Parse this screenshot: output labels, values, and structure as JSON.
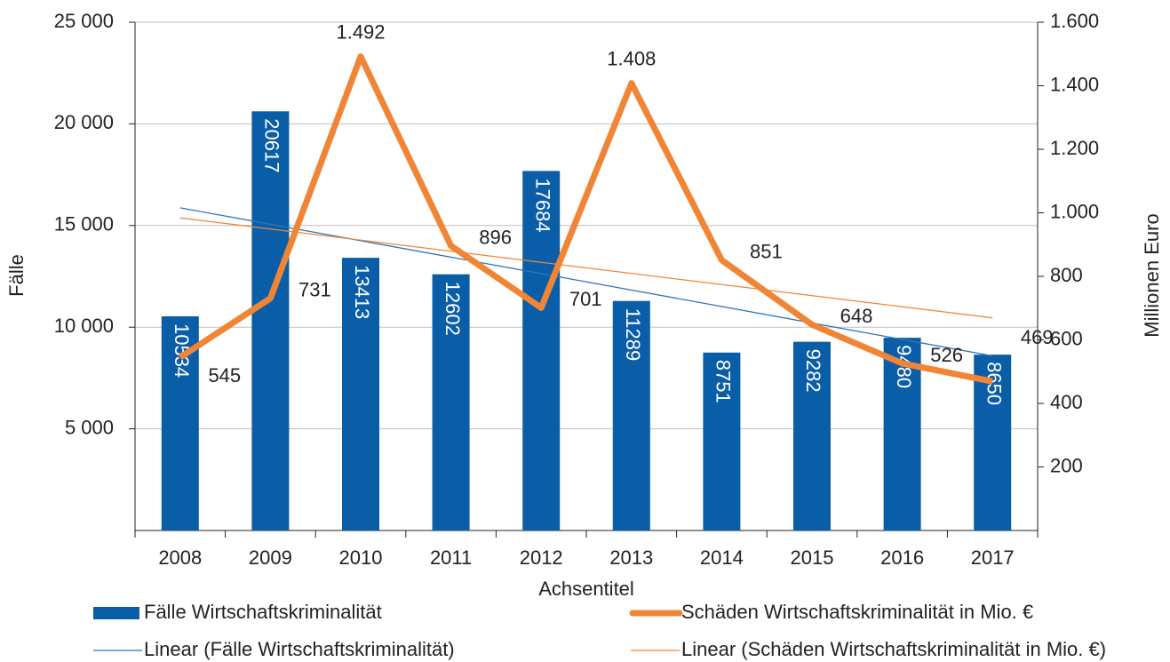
{
  "chart_data": {
    "type": "bar-line",
    "categories": [
      "2008",
      "2009",
      "2010",
      "2011",
      "2012",
      "2013",
      "2014",
      "2015",
      "2016",
      "2017"
    ],
    "x_label": "Achsentitel",
    "y_label": "Fälle",
    "y2_label": "Millionen Euro",
    "ylim": [
      0,
      25000
    ],
    "yticks": [
      {
        "value": 5000,
        "label": "5 000"
      },
      {
        "value": 10000,
        "label": "10 000"
      },
      {
        "value": 15000,
        "label": "15 000"
      },
      {
        "value": 20000,
        "label": "20 000"
      },
      {
        "value": 25000,
        "label": "25 000"
      }
    ],
    "y2lim": [
      0,
      1600
    ],
    "y2ticks": [
      200,
      400,
      600,
      800,
      {
        "value": 1000,
        "label": "1.000"
      },
      {
        "value": 1200,
        "label": "1.200"
      },
      {
        "value": 1400,
        "label": "1.400"
      },
      {
        "value": 1600,
        "label": "1.600"
      }
    ],
    "grid": true,
    "legend": "bottom",
    "series": [
      {
        "name": "Fälle Wirtschaftskriminalität",
        "kind": "bar",
        "color": "#0a5ea8",
        "values": [
          10534,
          20617,
          13413,
          12602,
          17684,
          11289,
          8751,
          9282,
          9480,
          8650
        ],
        "trendline": {
          "name": "Linear (Fälle Wirtschaftskriminalität)",
          "color": "#2e75b6"
        }
      },
      {
        "name": "Schäden Wirtschaftskriminalität in Mio. €",
        "kind": "line",
        "axis": "y2",
        "color": "#f08536",
        "values": [
          545,
          731,
          1492,
          896,
          701,
          1408,
          851,
          648,
          526,
          469
        ],
        "value_labels": [
          "545",
          "731",
          "1.492",
          "896",
          "701",
          "1.408",
          "851",
          "648",
          "526",
          "469"
        ],
        "trendline": {
          "name": "Linear (Schäden Wirtschaftskriminalität in Mio. €)",
          "color": "#f08536"
        }
      }
    ]
  }
}
